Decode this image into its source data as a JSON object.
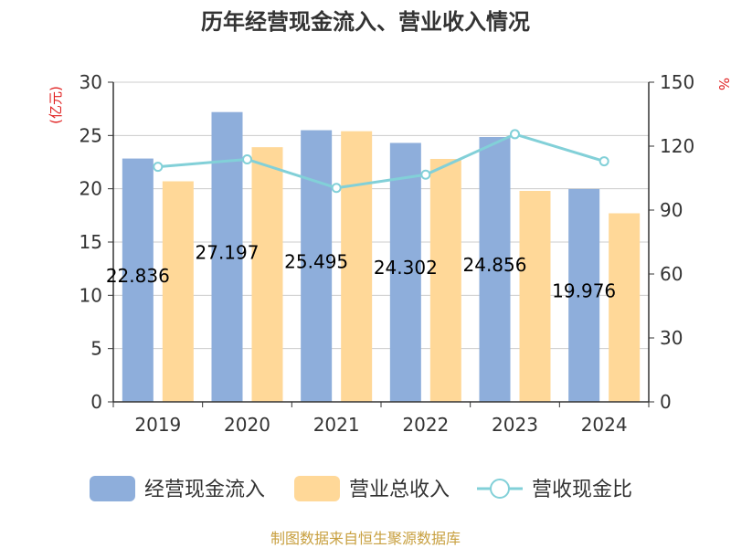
{
  "chart_data": {
    "type": "bar",
    "title": "历年经营现金流入、营业收入情况",
    "categories": [
      "2019",
      "2020",
      "2021",
      "2022",
      "2023",
      "2024"
    ],
    "series": [
      {
        "name": "经营现金流入",
        "kind": "bar",
        "axis": "left",
        "color": "#8eaedb",
        "values": [
          22.836,
          27.197,
          25.495,
          24.302,
          24.856,
          19.976
        ],
        "labels": [
          "22.836",
          "27.197",
          "25.495",
          "24.302",
          "24.856",
          "19.976"
        ]
      },
      {
        "name": "营业总收入",
        "kind": "bar",
        "axis": "left",
        "color": "#ffd898",
        "values": [
          20.7,
          23.9,
          25.4,
          22.8,
          19.8,
          17.7
        ]
      },
      {
        "name": "营收现金比",
        "kind": "line",
        "axis": "right",
        "color": "#82d0d8",
        "values": [
          110.3,
          113.8,
          100.4,
          106.6,
          125.6,
          112.9
        ]
      }
    ],
    "ylabel_left": "(亿元)",
    "ylabel_right": "%",
    "ylim_left": [
      0,
      30
    ],
    "yticks_left": [
      "0",
      "5",
      "10",
      "15",
      "20",
      "25",
      "30"
    ],
    "ylim_right": [
      0,
      150
    ],
    "yticks_right": [
      "0",
      "30",
      "60",
      "90",
      "120",
      "150"
    ],
    "grid": true,
    "legend_position": "bottom"
  },
  "source": "制图数据来自恒生聚源数据库",
  "colors": {
    "unit_red": "#e02020",
    "source_gold": "#c8a040",
    "axis": "#333333",
    "grid": "#cccccc"
  }
}
